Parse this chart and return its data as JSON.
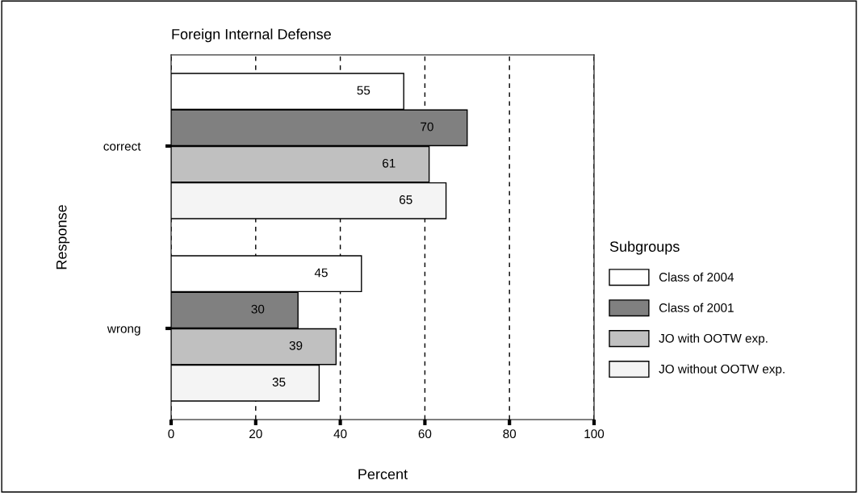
{
  "chart_data": {
    "type": "bar",
    "orientation": "horizontal",
    "title": "Foreign Internal Defense",
    "xlabel": "Percent",
    "ylabel": "Response",
    "legend_title": "Subgroups",
    "categories": [
      "correct",
      "wrong"
    ],
    "series": [
      {
        "name": "Class of 2004",
        "color": "#ffffff",
        "values": [
          55,
          45
        ]
      },
      {
        "name": "Class of 2001",
        "color": "#808080",
        "values": [
          70,
          30
        ]
      },
      {
        "name": "JO with OOTW exp.",
        "color": "#c0c0c0",
        "values": [
          61,
          39
        ]
      },
      {
        "name": "JO without OOTW exp.",
        "color": "#f4f4f4",
        "values": [
          65,
          35
        ]
      }
    ],
    "xlim": [
      0,
      100
    ],
    "xticks": [
      0,
      20,
      40,
      60,
      80,
      100
    ],
    "grid": "x",
    "legend": "right",
    "data_labels": true
  }
}
